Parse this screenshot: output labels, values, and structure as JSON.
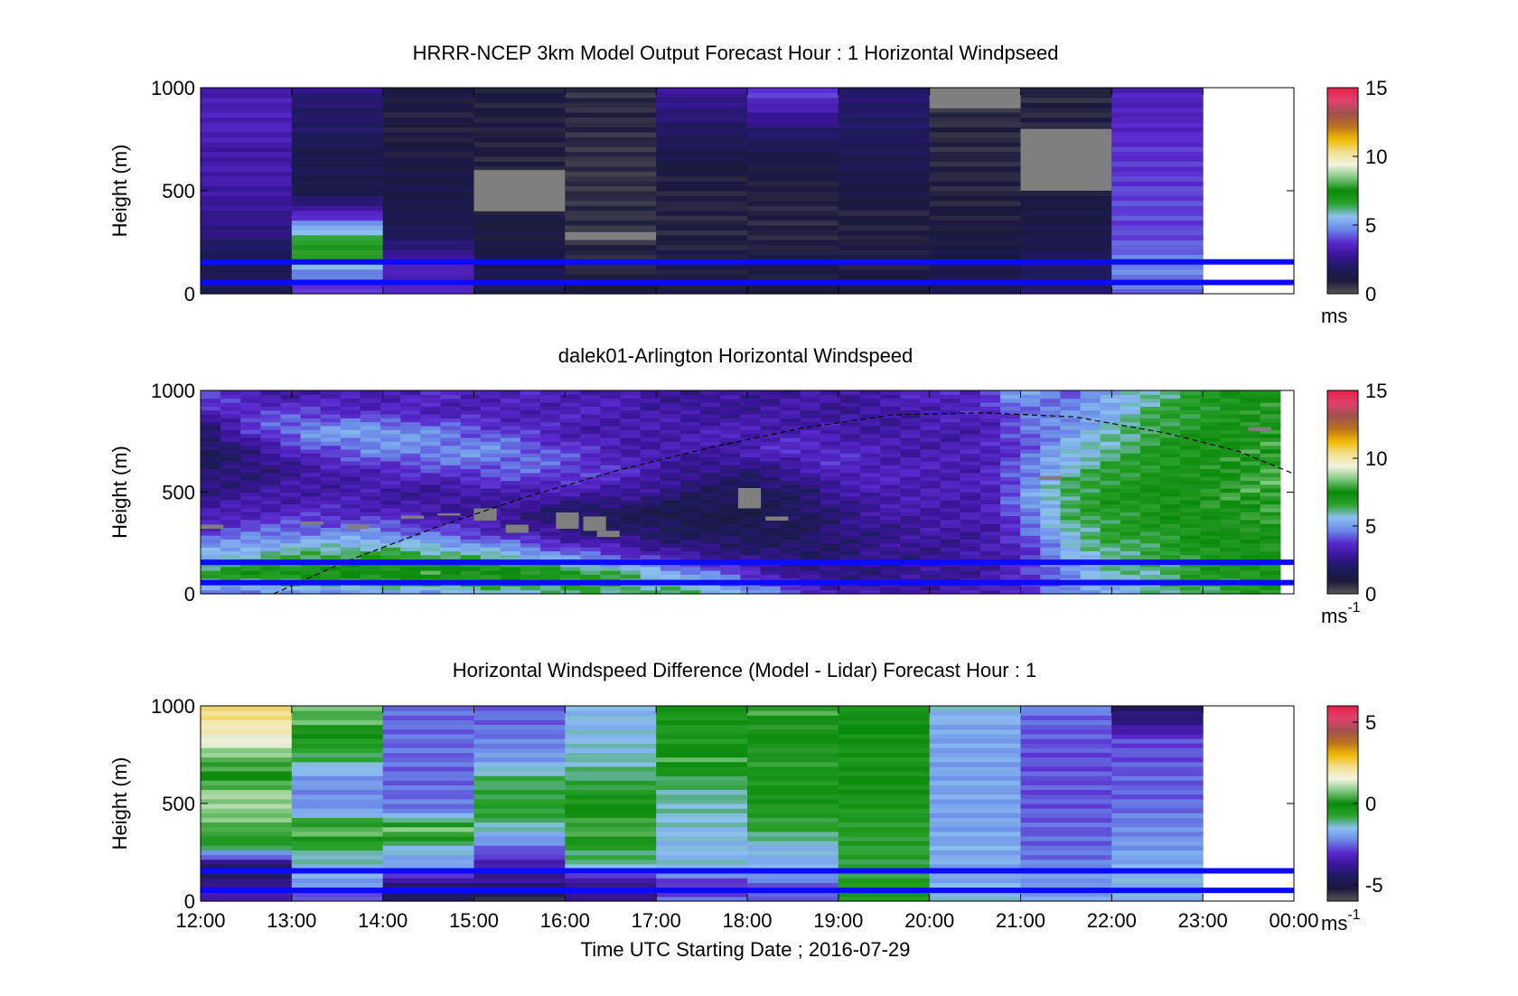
{
  "figure": {
    "xlabel": "Time UTC  Starting Date ; 2016-07-29",
    "x_tick_labels": [
      "12:00",
      "13:00",
      "14:00",
      "15:00",
      "16:00",
      "17:00",
      "18:00",
      "19:00",
      "20:00",
      "21:00",
      "22:00",
      "23:00",
      "00:00"
    ]
  },
  "chart_data": [
    {
      "type": "heatmap",
      "title": "HRRR-NCEP 3km Model Output   Forecast Hour : 1 Horizontal Windpseed",
      "ylabel": "Height (m)",
      "y_tick_labels": [
        "0",
        "500",
        "1000"
      ],
      "ylim": [
        0,
        1000
      ],
      "x_hours": [
        12,
        24
      ],
      "colorbar": {
        "ticks": [
          "0",
          "5",
          "10",
          "15"
        ],
        "range": [
          0,
          15
        ],
        "unit": "ms",
        "unit_sup": ""
      },
      "colormap": [
        "#575757",
        "#1a1a3d",
        "#1e1a5e",
        "#3a1599",
        "#5a2ad0",
        "#6a8ae8",
        "#8cc0f0",
        "#2aa12a",
        "#0a8a0a",
        "#7ec87e",
        "#f2f2e0",
        "#f2e090",
        "#f0b800",
        "#b87020",
        "#a05050",
        "#e0406a",
        "#e8204a"
      ],
      "hour_blocks": [
        [
          1.5,
          1.5,
          1.7,
          2.4,
          2.7,
          3.0,
          3.2,
          3.0,
          3.4,
          3.3,
          3.1
        ],
        [
          3.6,
          4.6,
          7.6,
          5.8,
          3.2,
          1.3,
          1.5,
          1.4,
          2.0,
          1.9,
          2.5
        ],
        [
          3.7,
          3.4,
          2.6,
          1.6,
          1.4,
          1.3,
          1.2,
          1.0,
          0.9,
          1.0,
          1.1
        ],
        [
          1.5,
          1.5,
          1.2,
          1.0,
          1.0,
          0.7,
          0.7,
          0.9,
          0.9,
          0.9,
          1.0
        ],
        [
          0.9,
          0.8,
          0.8,
          0.6,
          0.6,
          0.6,
          0.5,
          0.6,
          0.7,
          0.7,
          0.6
        ],
        [
          1.2,
          1.0,
          0.9,
          0.8,
          0.8,
          0.9,
          1.0,
          1.5,
          1.9,
          2.4,
          2.8
        ],
        [
          1.2,
          1.0,
          0.9,
          0.8,
          0.8,
          0.9,
          1.1,
          1.5,
          2.2,
          3.2,
          4.1
        ],
        [
          1.1,
          1.0,
          1.0,
          0.9,
          0.9,
          1.2,
          1.5,
          1.6,
          1.9,
          2.0,
          2.2
        ],
        [
          1.5,
          1.4,
          1.2,
          1.0,
          0.9,
          0.8,
          0.8,
          0.7,
          0.7,
          0.6,
          0.6
        ],
        [
          2.3,
          1.9,
          1.5,
          1.3,
          1.2,
          1.0,
          0.9,
          0.8,
          0.8,
          0.8,
          0.7
        ],
        [
          4.4,
          4.7,
          4.4,
          4.0,
          4.0,
          4.0,
          3.8,
          3.8,
          3.6,
          3.4,
          3.4
        ]
      ],
      "missing_cells": [
        {
          "hour": 15,
          "y_range": [
            400,
            600
          ]
        },
        {
          "hour": 16,
          "y_range": [
            260,
            300
          ]
        },
        {
          "hour": 20,
          "y_range": [
            900,
            1000
          ]
        },
        {
          "hour": 21,
          "y_range": [
            500,
            800
          ]
        }
      ],
      "hlines_m": [
        155,
        55
      ]
    },
    {
      "type": "heatmap",
      "title": "dalek01-Arlington  Horizontal Windspeed",
      "ylabel": "Height (m)",
      "y_tick_labels": [
        "0",
        "500",
        "1000"
      ],
      "ylim": [
        0,
        1000
      ],
      "x_hours": [
        12,
        24
      ],
      "data_x_end_hour": 23.85,
      "colorbar": {
        "ticks": [
          "0",
          "5",
          "10",
          "15"
        ],
        "range": [
          0,
          15
        ],
        "unit": "ms",
        "unit_sup": "-1"
      },
      "profile_times": [
        12,
        12.6,
        13.2,
        13.9,
        14.6,
        15.3,
        16.0,
        16.7,
        17.4,
        18.0,
        18.6,
        19.0,
        19.5,
        20.0,
        20.6,
        21.0,
        21.5,
        22.0,
        22.5,
        23.0,
        23.5,
        23.85
      ],
      "profiles": [
        [
          4.2,
          6.8,
          5.2,
          4.0,
          3.0,
          2.5,
          2.0,
          1.6,
          1.8,
          3.2,
          4.5
        ],
        [
          4.5,
          7.2,
          5.8,
          4.4,
          3.4,
          2.8,
          2.3,
          2.5,
          3.8,
          4.0,
          2.8
        ],
        [
          4.7,
          7.4,
          6.2,
          4.6,
          3.6,
          3.1,
          2.8,
          3.8,
          5.0,
          3.8,
          3.0
        ],
        [
          4.8,
          7.5,
          6.5,
          4.8,
          3.5,
          3.0,
          3.4,
          4.6,
          5.2,
          3.5,
          3.2
        ],
        [
          5.0,
          7.8,
          6.2,
          4.2,
          3.0,
          2.7,
          3.8,
          4.8,
          4.6,
          3.3,
          3.6
        ],
        [
          5.5,
          7.8,
          5.6,
          3.5,
          2.8,
          3.2,
          4.2,
          4.8,
          4.0,
          3.2,
          3.4
        ],
        [
          6.0,
          7.2,
          4.5,
          2.6,
          1.9,
          3.2,
          4.1,
          4.0,
          3.2,
          3.4,
          3.3
        ],
        [
          6.3,
          6.2,
          3.6,
          2.1,
          1.6,
          2.9,
          3.6,
          3.2,
          3.0,
          3.3,
          3.0
        ],
        [
          6.2,
          5.0,
          2.7,
          1.7,
          1.3,
          2.0,
          2.5,
          3.0,
          3.3,
          2.8,
          2.7
        ],
        [
          5.3,
          3.8,
          2.3,
          1.6,
          1.4,
          1.6,
          2.2,
          3.2,
          3.3,
          2.8,
          2.8
        ],
        [
          4.0,
          2.6,
          2.0,
          1.7,
          1.8,
          2.1,
          2.8,
          3.8,
          3.2,
          3.0,
          3.0
        ],
        [
          3.4,
          2.4,
          2.2,
          2.3,
          2.4,
          2.8,
          3.6,
          3.6,
          3.1,
          2.8,
          2.9
        ],
        [
          3.0,
          2.5,
          2.6,
          2.6,
          3.0,
          3.3,
          3.4,
          3.2,
          3.0,
          2.8,
          3.3
        ],
        [
          3.2,
          2.7,
          2.7,
          2.9,
          3.1,
          3.2,
          3.3,
          3.2,
          3.1,
          3.3,
          3.5
        ],
        [
          3.3,
          2.9,
          3.0,
          3.0,
          3.1,
          3.2,
          3.3,
          3.3,
          3.2,
          3.4,
          3.7
        ],
        [
          3.8,
          3.6,
          3.5,
          3.8,
          4.4,
          4.6,
          4.4,
          4.0,
          4.2,
          4.5,
          5.4
        ],
        [
          4.6,
          4.8,
          5.2,
          5.8,
          6.2,
          6.4,
          5.8,
          5.4,
          5.0,
          4.6,
          4.3
        ],
        [
          5.4,
          5.8,
          6.2,
          6.6,
          6.8,
          7.0,
          6.6,
          6.2,
          5.8,
          5.4,
          5.0
        ],
        [
          5.8,
          6.2,
          6.4,
          6.8,
          7.0,
          7.2,
          7.0,
          6.8,
          6.6,
          6.4,
          6.2
        ],
        [
          6.4,
          6.8,
          7.0,
          7.2,
          7.4,
          7.6,
          7.4,
          7.2,
          7.0,
          6.8,
          6.6
        ],
        [
          6.6,
          7.0,
          7.2,
          7.4,
          7.6,
          7.8,
          7.8,
          7.6,
          7.6,
          7.4,
          7.4
        ],
        [
          6.8,
          7.2,
          7.4,
          7.6,
          7.8,
          8.0,
          8.0,
          7.8,
          7.8,
          7.6,
          7.6
        ]
      ],
      "missing_cells": [
        {
          "hour": 12.0,
          "y_range": [
            320,
            340
          ]
        },
        {
          "hour": 13.1,
          "y_range": [
            340,
            355
          ]
        },
        {
          "hour": 13.6,
          "y_range": [
            320,
            340
          ]
        },
        {
          "hour": 14.2,
          "y_range": [
            370,
            385
          ]
        },
        {
          "hour": 14.6,
          "y_range": [
            385,
            395
          ]
        },
        {
          "hour": 15.0,
          "y_range": [
            360,
            420
          ]
        },
        {
          "hour": 15.35,
          "y_range": [
            300,
            340
          ]
        },
        {
          "hour": 15.9,
          "y_range": [
            320,
            400
          ]
        },
        {
          "hour": 16.2,
          "y_range": [
            310,
            380
          ]
        },
        {
          "hour": 16.35,
          "y_range": [
            280,
            310
          ]
        },
        {
          "hour": 17.9,
          "y_range": [
            420,
            520
          ]
        },
        {
          "hour": 18.2,
          "y_range": [
            360,
            380
          ]
        },
        {
          "hour": 21.2,
          "y_range": [
            560,
            580
          ]
        },
        {
          "hour": 23.5,
          "y_range": [
            800,
            820
          ]
        }
      ],
      "dashed_curve": {
        "x": [
          12.8,
          13.6,
          14.6,
          15.6,
          16.6,
          17.6,
          18.6,
          19.6,
          20.6,
          21.6,
          22.6,
          23.4,
          24.0
        ],
        "y": [
          0,
          160,
          330,
          480,
          610,
          720,
          815,
          880,
          890,
          870,
          790,
          700,
          590
        ]
      },
      "hlines_m": [
        155,
        55
      ]
    },
    {
      "type": "heatmap",
      "title": "Horizontal Windspeed Difference (Model - Lidar) Forecast Hour : 1",
      "ylabel": "Height (m)",
      "y_tick_labels": [
        "0",
        "500",
        "1000"
      ],
      "ylim": [
        0,
        1000
      ],
      "x_hours": [
        12,
        24
      ],
      "colorbar": {
        "ticks": [
          "-5",
          "0",
          "5"
        ],
        "range": [
          -6,
          6
        ],
        "unit": "ms",
        "unit_sup": "-1"
      },
      "colormap": [
        "#575757",
        "#1a1a3d",
        "#1e1a5e",
        "#3a1599",
        "#5a2ad0",
        "#6a8ae8",
        "#8cc0f0",
        "#2aa12a",
        "#0a8a0a",
        "#7ec87e",
        "#f2f2e0",
        "#f2e090",
        "#f0b800",
        "#b87020",
        "#a05050",
        "#e0406a",
        "#e8204a"
      ],
      "hour_blocks": [
        [
          -3.5,
          -4.0,
          -4.5,
          -1.0,
          0.4,
          0.8,
          1.0,
          0.0,
          0.5,
          1.5,
          2.0,
          2.5
        ],
        [
          -3.0,
          -2.0,
          -1.5,
          -1.0,
          0.9,
          -2.0,
          -2.2,
          -2.0,
          -1.0,
          -0.5,
          0.5,
          0.5
        ],
        [
          -4.5,
          -4.0,
          -2.0,
          -1.5,
          1.0,
          -2.3,
          -2.5,
          -2.5,
          -2.5,
          -2.5,
          -2.5,
          -2.5
        ],
        [
          -5.5,
          -4.0,
          -3.5,
          -2.5,
          -1.5,
          -0.6,
          -0.8,
          -1.0,
          -2.0,
          -2.3,
          -2.5,
          -2.5
        ],
        [
          -4.0,
          -4.0,
          -1.2,
          -0.8,
          0.5,
          -0.1,
          -0.5,
          -1.0,
          -1.3,
          -1.5,
          -1.6,
          -1.6
        ],
        [
          -2.5,
          -3.0,
          -1.5,
          -1.6,
          -1.5,
          -1.3,
          -1.2,
          -0.8,
          0.4,
          -0.5,
          -0.4,
          -0.3
        ],
        [
          -2.5,
          -2.5,
          -1.8,
          -1.6,
          -0.8,
          -0.6,
          -0.2,
          -0.5,
          0.3,
          -0.3,
          0.1,
          0.4
        ],
        [
          -0.5,
          -0.6,
          -0.7,
          -0.7,
          -0.6,
          -0.5,
          -0.3,
          -0.2,
          -0.4,
          -0.2,
          -0.1,
          -0.3
        ],
        [
          -1.5,
          -1.8,
          -1.8,
          -1.8,
          -1.9,
          -1.9,
          -1.9,
          -1.9,
          -1.9,
          -1.9,
          -1.8,
          -1.5
        ],
        [
          -1.8,
          -2.0,
          -2.3,
          -2.5,
          -2.6,
          -2.6,
          -2.7,
          -2.7,
          -2.7,
          -2.7,
          -2.6,
          -2.3
        ],
        [
          -1.5,
          -1.6,
          -1.8,
          -2.0,
          -2.2,
          -2.4,
          -2.6,
          -2.6,
          -2.7,
          -2.7,
          -4.0,
          -4.4
        ]
      ],
      "missing_cells": [],
      "hlines_m": [
        155,
        55
      ]
    }
  ]
}
